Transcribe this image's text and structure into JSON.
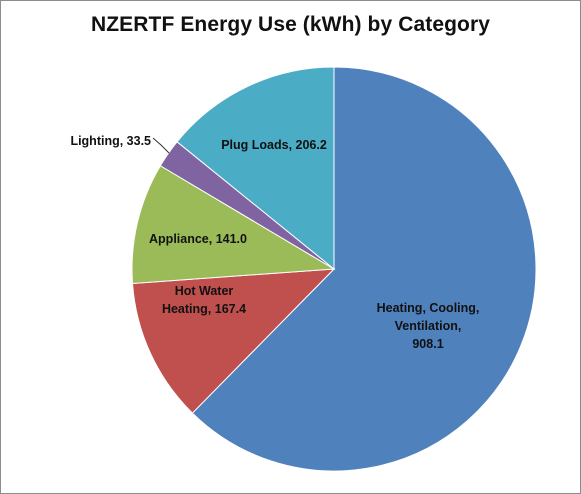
{
  "chart_data": {
    "type": "pie",
    "title": "NZERTF Energy Use (kWh) by Category",
    "slices": [
      {
        "name": "Heating, Cooling, Ventilation",
        "value": 908.1,
        "label_lines": [
          "Heating, Cooling,",
          "Ventilation,",
          "908.1"
        ],
        "color": "#4f81bd"
      },
      {
        "name": "Hot Water Heating",
        "value": 167.4,
        "label_lines": [
          "Hot Water",
          "Heating, 167.4"
        ],
        "color": "#c0504d"
      },
      {
        "name": "Appliance",
        "value": 141.0,
        "label_lines": [
          "Appliance, 141.0"
        ],
        "color": "#9bbb59"
      },
      {
        "name": "Lighting",
        "value": 33.5,
        "label_lines": [
          "Lighting, 33.5"
        ],
        "color": "#8064a2"
      },
      {
        "name": "Plug Loads",
        "value": 206.2,
        "label_lines": [
          "Plug Loads, 206.2"
        ],
        "color": "#4bacc6"
      }
    ],
    "start_direction": "12 o'clock",
    "rotation": "clockwise",
    "legend": "none"
  }
}
